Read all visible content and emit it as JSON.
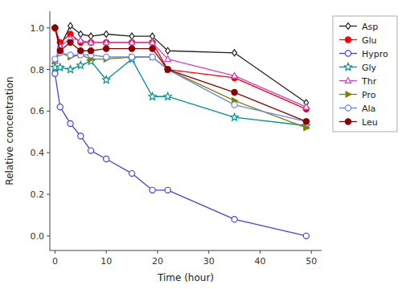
{
  "chart_data": {
    "type": "line",
    "xlabel": "Time (hour)",
    "ylabel": "Relative concentration",
    "x": [
      0,
      1,
      3,
      5,
      7,
      10,
      15,
      19,
      22,
      35,
      49
    ],
    "series": [
      {
        "name": "Asp",
        "color": "#222222",
        "marker": "diamond-open",
        "values": [
          1.0,
          0.91,
          1.01,
          0.97,
          0.96,
          0.97,
          0.96,
          0.96,
          0.89,
          0.88,
          0.64
        ]
      },
      {
        "name": "Glu",
        "color": "#ff0000",
        "marker": "circle",
        "values": [
          1.0,
          0.93,
          0.97,
          0.93,
          0.93,
          0.93,
          0.93,
          0.93,
          0.8,
          0.76,
          0.61
        ]
      },
      {
        "name": "Hypro",
        "color": "#4444dd",
        "marker": "circle-open",
        "values": [
          0.78,
          0.62,
          0.54,
          0.48,
          0.41,
          0.37,
          0.3,
          0.22,
          0.22,
          0.08,
          0.0
        ]
      },
      {
        "name": "Gly",
        "color": "#009090",
        "marker": "star-open",
        "values": [
          0.81,
          0.81,
          0.8,
          0.82,
          0.84,
          0.75,
          0.85,
          0.67,
          0.67,
          0.57,
          0.53
        ]
      },
      {
        "name": "Thr",
        "color": "#cc44cc",
        "marker": "triangle-up-open",
        "values": [
          0.84,
          0.91,
          0.95,
          0.94,
          0.93,
          0.93,
          0.93,
          0.93,
          0.85,
          0.77,
          0.62
        ]
      },
      {
        "name": "Pro",
        "color": "#808000",
        "marker": "triangle-right",
        "values": [
          0.84,
          0.88,
          0.86,
          0.87,
          0.85,
          0.85,
          0.86,
          0.86,
          0.8,
          0.65,
          0.52
        ]
      },
      {
        "name": "Ala",
        "color": "#6688ee",
        "marker": "circle-open",
        "values": [
          0.85,
          0.88,
          0.87,
          0.87,
          0.87,
          0.86,
          0.86,
          0.86,
          0.8,
          0.63,
          0.55
        ]
      },
      {
        "name": "Leu",
        "color": "#8b0000",
        "marker": "circle",
        "values": [
          1.0,
          0.89,
          0.93,
          0.89,
          0.89,
          0.9,
          0.9,
          0.9,
          0.8,
          0.69,
          0.55
        ]
      }
    ],
    "xlim": [
      -1,
      52
    ],
    "ylim": [
      -0.07,
      1.08
    ],
    "xticks": [
      0,
      10,
      20,
      30,
      40,
      50
    ],
    "yticks": [
      {
        "value": 0.0,
        "label": "0.0"
      },
      0.2,
      0.4,
      0.6,
      0.8,
      {
        "value": 1.0,
        "label": "1.0"
      }
    ],
    "grid": false,
    "legend": "right"
  }
}
